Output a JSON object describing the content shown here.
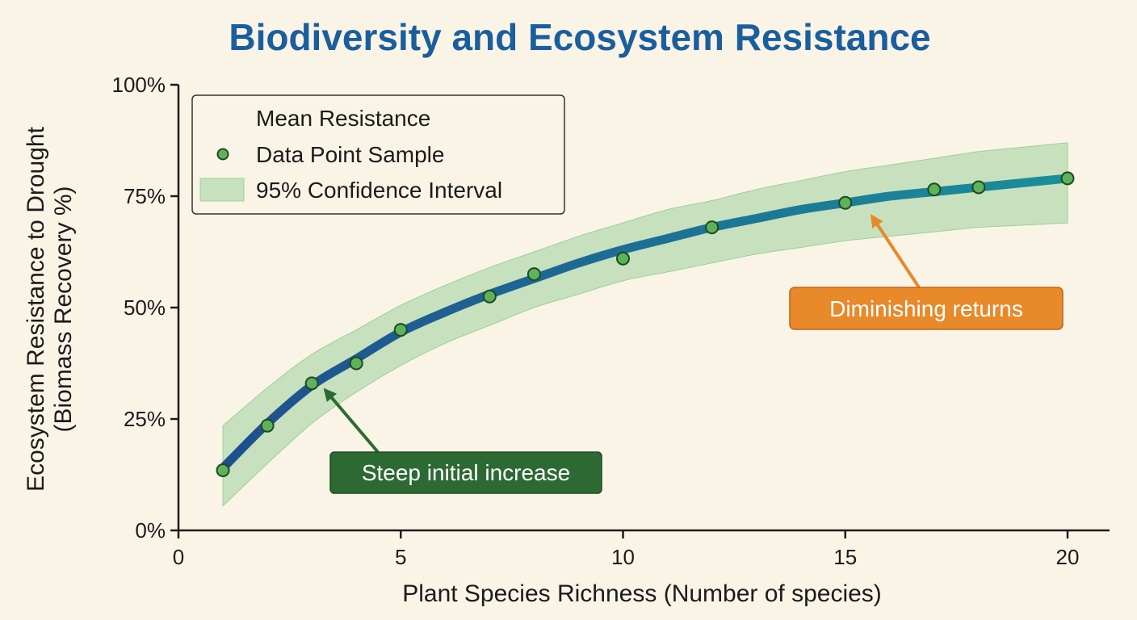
{
  "chart_data": {
    "type": "line",
    "title": "Biodiversity and Ecosystem Resistance",
    "xlabel": "Plant Species Richness (Number of species)",
    "ylabel": [
      "Ecosystem Resistance to Drought",
      "(Biomass Recovery %)"
    ],
    "xlim": [
      0,
      21
    ],
    "ylim": [
      0,
      100
    ],
    "x_ticks": [
      0,
      5,
      10,
      15,
      20
    ],
    "y_ticks": [
      0,
      25,
      50,
      75,
      100
    ],
    "y_tick_labels": [
      "0%",
      "25%",
      "50%",
      "75%",
      "100%"
    ],
    "grid": false,
    "legend_position": "top-left",
    "legend": [
      {
        "kind": "line",
        "label": "Mean Resistance"
      },
      {
        "kind": "point",
        "label": "Data Point Sample"
      },
      {
        "kind": "band",
        "label": "95% Confidence Interval"
      }
    ],
    "mean_curve": {
      "x": [
        1,
        2,
        3,
        4,
        5,
        6,
        7,
        8,
        9,
        10,
        11,
        12,
        13,
        14,
        15,
        16,
        17,
        18,
        19,
        20
      ],
      "y": [
        14,
        24,
        32.5,
        38.5,
        44.5,
        49,
        53,
        56.5,
        60,
        63,
        65.5,
        68,
        70,
        72,
        73.5,
        75,
        76,
        77,
        78,
        79
      ]
    },
    "confidence_interval": {
      "x": [
        1,
        2,
        3,
        4,
        5,
        6,
        7,
        8,
        9,
        10,
        11,
        12,
        13,
        14,
        15,
        16,
        17,
        18,
        19,
        20
      ],
      "lower": [
        5.5,
        15,
        24,
        31,
        37,
        42,
        46,
        50,
        53,
        56,
        58,
        60,
        62,
        63.5,
        65,
        66,
        67,
        68,
        68.5,
        69
      ],
      "upper": [
        23.5,
        32,
        39.5,
        45,
        50.5,
        55,
        59,
        62.5,
        66,
        69,
        72,
        74,
        76.5,
        78.5,
        80.5,
        82,
        83.5,
        85,
        86,
        87
      ]
    },
    "points": {
      "x": [
        1,
        2,
        3,
        4,
        5,
        7,
        8,
        10,
        12,
        15,
        17,
        18,
        20
      ],
      "y": [
        13.5,
        23.5,
        33,
        37.5,
        45,
        52.5,
        57.5,
        61,
        68,
        73.5,
        76.5,
        77,
        79
      ]
    },
    "annotations": [
      {
        "text": "Steep initial increase",
        "target": [
          3.3,
          31.5
        ],
        "color": "#2d6a33"
      },
      {
        "text": "Diminishing returns",
        "target": [
          15.6,
          70.5
        ],
        "color": "#e8892a"
      }
    ],
    "colors": {
      "curve_start": "#1f4f8e",
      "curve_end": "#1a8f9a",
      "band": "#b6dbb0",
      "point_fill": "#5fb25c",
      "point_stroke": "#1d4a1f",
      "title": "#1a5e9e"
    }
  }
}
